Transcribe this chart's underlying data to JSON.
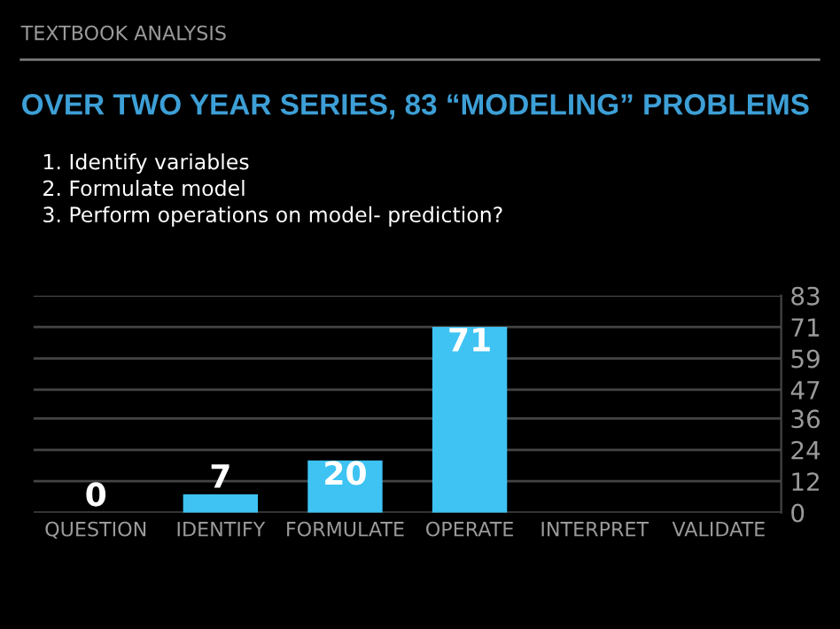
{
  "chart_data": {
    "type": "bar",
    "title": "OVER TWO YEAR SERIES, 83 “MODELING” PROBLEMS",
    "annotations": [
      "TEXTBOOK ANALYSIS",
      "1. Identify variables",
      "2. Formulate model",
      "3. Perform operations on model- prediction?"
    ],
    "categories": [
      "QUESTION",
      "IDENTIFY",
      "FORMULATE",
      "OPERATE",
      "INTERPRET",
      "VALIDATE"
    ],
    "values": [
      0,
      7,
      20,
      71,
      null,
      null
    ],
    "color": "#3ec3f3",
    "ylim": [
      0,
      83
    ],
    "yticks": [
      0,
      12,
      24,
      36,
      47,
      59,
      71,
      83
    ],
    "grid": "y",
    "data_labels": true
  }
}
